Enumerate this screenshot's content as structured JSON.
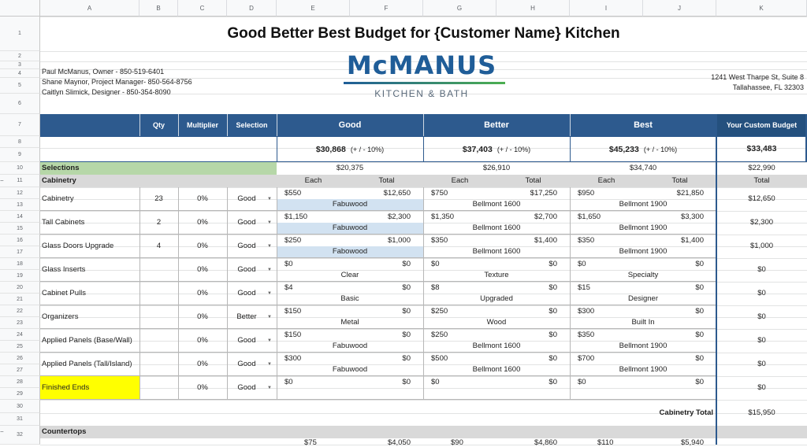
{
  "columns": [
    "A",
    "B",
    "C",
    "D",
    "E",
    "F",
    "G",
    "H",
    "I",
    "J",
    "K"
  ],
  "rows": [
    "1",
    "2",
    "3",
    "4",
    "5",
    "6",
    "7",
    "8",
    "9",
    "10",
    "11",
    "12",
    "13",
    "14",
    "15",
    "16",
    "17",
    "18",
    "19",
    "20",
    "21",
    "22",
    "23",
    "24",
    "25",
    "26",
    "27",
    "28",
    "29",
    "30",
    "31",
    "32"
  ],
  "title": "Good Better Best Budget for {Customer Name} Kitchen",
  "contacts": [
    "Paul McManus, Owner - 850-519-6401",
    "Shane Maynor, Project Manager- 850-564-8756",
    "Caitlyn Slimick, Designer - 850-354-8090"
  ],
  "logo": {
    "main": "McMANUS",
    "sub": "KITCHEN & BATH"
  },
  "address": [
    "1241 West Tharpe St, Suite 8",
    "Tallahassee, FL 32303"
  ],
  "header": {
    "qty": "Qty",
    "multiplier": "Multiplier",
    "selection": "Selection",
    "good": "Good",
    "better": "Better",
    "best": "Best",
    "custom": "Your Custom Budget"
  },
  "totals": {
    "good": "$30,868",
    "better": "$37,403",
    "best": "$45,233",
    "range": "(+ / - 10%)",
    "custom": "$33,483"
  },
  "selections_row": {
    "label": "Selections",
    "good": "$20,375",
    "better": "$26,910",
    "best": "$34,740",
    "custom": "$22,990"
  },
  "cabinetry_section": {
    "label": "Cabinetry",
    "each": "Each",
    "total": "Total"
  },
  "items": [
    {
      "name": "Cabinetry",
      "qty": "23",
      "mult": "0%",
      "sel": "Good",
      "g_each": "$550",
      "g_total": "$12,650",
      "g_desc": "Fabuwood",
      "b_each": "$750",
      "b_total": "$17,250",
      "b_desc": "Bellmont 1600",
      "x_each": "$950",
      "x_total": "$21,850",
      "x_desc": "Bellmont 1900",
      "custom": "$12,650"
    },
    {
      "name": "Tall Cabinets",
      "qty": "2",
      "mult": "0%",
      "sel": "Good",
      "g_each": "$1,150",
      "g_total": "$2,300",
      "g_desc": "Fabuwood",
      "b_each": "$1,350",
      "b_total": "$2,700",
      "b_desc": "Bellmont 1600",
      "x_each": "$1,650",
      "x_total": "$3,300",
      "x_desc": "Bellmont 1900",
      "custom": "$2,300"
    },
    {
      "name": "Glass Doors Upgrade",
      "qty": "4",
      "mult": "0%",
      "sel": "Good",
      "g_each": "$250",
      "g_total": "$1,000",
      "g_desc": "Fabowood",
      "b_each": "$350",
      "b_total": "$1,400",
      "b_desc": "Bellmont 1600",
      "x_each": "$350",
      "x_total": "$1,400",
      "x_desc": "Bellmont 1900",
      "custom": "$1,000"
    },
    {
      "name": "Glass Inserts",
      "qty": "",
      "mult": "0%",
      "sel": "Good",
      "g_each": "$0",
      "g_total": "$0",
      "g_desc": "Clear",
      "b_each": "$0",
      "b_total": "$0",
      "b_desc": "Texture",
      "x_each": "$0",
      "x_total": "$0",
      "x_desc": "Specialty",
      "custom": "$0"
    },
    {
      "name": "Cabinet Pulls",
      "qty": "",
      "mult": "0%",
      "sel": "Good",
      "g_each": "$4",
      "g_total": "$0",
      "g_desc": "Basic",
      "b_each": "$8",
      "b_total": "$0",
      "b_desc": "Upgraded",
      "x_each": "$15",
      "x_total": "$0",
      "x_desc": "Designer",
      "custom": "$0"
    },
    {
      "name": "Organizers",
      "qty": "",
      "mult": "0%",
      "sel": "Better",
      "g_each": "$150",
      "g_total": "$0",
      "g_desc": "Metal",
      "b_each": "$250",
      "b_total": "$0",
      "b_desc": "Wood",
      "x_each": "$300",
      "x_total": "$0",
      "x_desc": "Built In",
      "custom": "$0"
    },
    {
      "name": "Applied Panels (Base/Wall)",
      "qty": "",
      "mult": "0%",
      "sel": "Good",
      "g_each": "$150",
      "g_total": "$0",
      "g_desc": "Fabuwood",
      "b_each": "$250",
      "b_total": "$0",
      "b_desc": "Bellmont 1600",
      "x_each": "$350",
      "x_total": "$0",
      "x_desc": "Bellmont 1900",
      "custom": "$0"
    },
    {
      "name": "Applied Panels (Tall/Island)",
      "qty": "",
      "mult": "0%",
      "sel": "Good",
      "g_each": "$300",
      "g_total": "$0",
      "g_desc": "Fabuwood",
      "b_each": "$500",
      "b_total": "$0",
      "b_desc": "Bellmont 1600",
      "x_each": "$700",
      "x_total": "$0",
      "x_desc": "Bellmont 1900",
      "custom": "$0"
    },
    {
      "name": "Finished Ends",
      "qty": "",
      "mult": "0%",
      "sel": "Good",
      "g_each": "$0",
      "g_total": "$0",
      "g_desc": "",
      "b_each": "$0",
      "b_total": "$0",
      "b_desc": "",
      "x_each": "$0",
      "x_total": "$0",
      "x_desc": "",
      "custom": "$0"
    }
  ],
  "cabinetry_total": {
    "label": "Cabinetry Total",
    "value": "$15,950"
  },
  "countertops_section": {
    "label": "Countertops"
  },
  "partial_row": {
    "g_each": "$75",
    "g_total": "$4,050",
    "b_each": "$90",
    "b_total": "$4,860",
    "x_each": "$110",
    "x_total": "$5,940"
  },
  "colors": {
    "header_blue": "#2d5a8e",
    "selections_green": "#b6d7a8",
    "highlight_yellow": "#ffff00",
    "light_blue": "#d2e2f1"
  }
}
